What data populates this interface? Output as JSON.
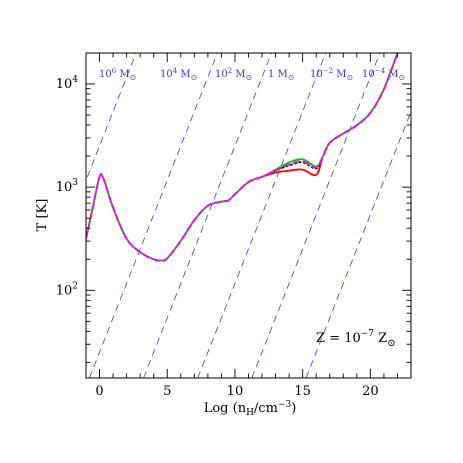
{
  "chart_data": {
    "type": "line",
    "title": "",
    "xlabel_main": "Log (n",
    "xlabel_sub": "H",
    "xlabel_tail": "/cm",
    "xlabel_sup": "−3",
    "xlabel_close": ")",
    "ylabel": "T [K]",
    "xlim": [
      -1,
      23
    ],
    "ylim_log10": [
      1.15,
      4.3
    ],
    "y_log_scale": true,
    "x_ticks": [
      {
        "value": 0,
        "label": "0"
      },
      {
        "value": 5,
        "label": "5"
      },
      {
        "value": 10,
        "label": "10"
      },
      {
        "value": 15,
        "label": "15"
      },
      {
        "value": 20,
        "label": "20"
      }
    ],
    "y_ticks": [
      {
        "log10": 2,
        "base": "10",
        "exp": "2"
      },
      {
        "log10": 3,
        "base": "10",
        "exp": "3"
      },
      {
        "log10": 4,
        "base": "10",
        "exp": "4"
      }
    ],
    "annotation": {
      "prefix": "Z = 10",
      "exp": "−7",
      "suffix": " Z",
      "sub": "⊙"
    },
    "jeans_mass_lines": {
      "color": "#3a3ad8",
      "style": "dashed",
      "slope_dlogT_dx": 0.3333,
      "x_at_T100": [
        -4.2,
        1.8,
        5.8,
        9.8,
        13.8,
        17.8
      ],
      "labels": [
        {
          "base": "10",
          "exp": "6",
          "unit": " M",
          "sym": "⊙"
        },
        {
          "base": "10",
          "exp": "4",
          "unit": " M",
          "sym": "⊙"
        },
        {
          "base": "10",
          "exp": "2",
          "unit": " M",
          "sym": "⊙"
        },
        {
          "base": "1",
          "exp": "",
          "unit": " M",
          "sym": "⊙"
        },
        {
          "base": "10",
          "exp": "−2",
          "unit": " M",
          "sym": "⊙"
        },
        {
          "base": "10",
          "exp": "−4",
          "unit": " M",
          "sym": "⊙"
        }
      ]
    },
    "series": [
      {
        "color": "#ff0000",
        "style": "solid",
        "x": [
          -1,
          -0.5,
          0,
          0.3,
          1,
          2,
          3,
          4,
          4.5,
          5,
          6,
          7,
          8,
          9,
          9.5,
          10,
          11,
          12,
          13,
          14,
          15,
          16,
          16.5,
          17,
          18,
          19,
          20,
          21,
          22
        ],
        "log10_T": [
          2.5,
          2.8,
          3.1,
          3.08,
          2.8,
          2.5,
          2.37,
          2.3,
          2.29,
          2.31,
          2.48,
          2.68,
          2.82,
          2.86,
          2.87,
          2.93,
          3.05,
          3.1,
          3.14,
          3.16,
          3.17,
          3.12,
          3.3,
          3.43,
          3.52,
          3.6,
          3.72,
          3.95,
          4.3
        ]
      },
      {
        "color": "#000000",
        "style": "dotted",
        "x": [
          -1,
          -0.5,
          0,
          0.3,
          1,
          2,
          3,
          4,
          4.5,
          5,
          6,
          7,
          8,
          9,
          9.5,
          10,
          11,
          12,
          13,
          14,
          15,
          16,
          16.5,
          17,
          18,
          19,
          20,
          21,
          22
        ],
        "log10_T": [
          2.5,
          2.8,
          3.1,
          3.08,
          2.8,
          2.5,
          2.37,
          2.3,
          2.29,
          2.31,
          2.48,
          2.68,
          2.82,
          2.86,
          2.87,
          2.93,
          3.05,
          3.1,
          3.16,
          3.21,
          3.24,
          3.18,
          3.3,
          3.43,
          3.52,
          3.6,
          3.72,
          3.95,
          4.3
        ]
      },
      {
        "color": "#00cc00",
        "style": "solid",
        "x": [
          -1,
          -0.5,
          0,
          0.3,
          1,
          2,
          3,
          4,
          4.5,
          5,
          6,
          7,
          8,
          9,
          9.5,
          10,
          11,
          12,
          13,
          14,
          15,
          16,
          16.5,
          17,
          18,
          19,
          20,
          21,
          22
        ],
        "log10_T": [
          2.5,
          2.8,
          3.1,
          3.08,
          2.8,
          2.5,
          2.37,
          2.3,
          2.29,
          2.31,
          2.48,
          2.68,
          2.82,
          2.86,
          2.87,
          2.93,
          3.05,
          3.1,
          3.17,
          3.24,
          3.27,
          3.2,
          3.3,
          3.43,
          3.52,
          3.6,
          3.72,
          3.95,
          4.3
        ]
      },
      {
        "color": "#ff00ff",
        "style": "dashed",
        "x": [
          -1,
          -0.5,
          0,
          0.3,
          1,
          2,
          3,
          4,
          4.5,
          5,
          6,
          7,
          8,
          9,
          9.5,
          10,
          11,
          12,
          13,
          14,
          15,
          16,
          16.5,
          17,
          18,
          19,
          20,
          21,
          22
        ],
        "log10_T": [
          2.5,
          2.8,
          3.1,
          3.08,
          2.8,
          2.5,
          2.37,
          2.3,
          2.29,
          2.31,
          2.48,
          2.68,
          2.82,
          2.86,
          2.87,
          2.93,
          3.05,
          3.1,
          3.16,
          3.22,
          3.25,
          3.19,
          3.3,
          3.43,
          3.52,
          3.6,
          3.72,
          3.95,
          4.3
        ]
      }
    ]
  }
}
